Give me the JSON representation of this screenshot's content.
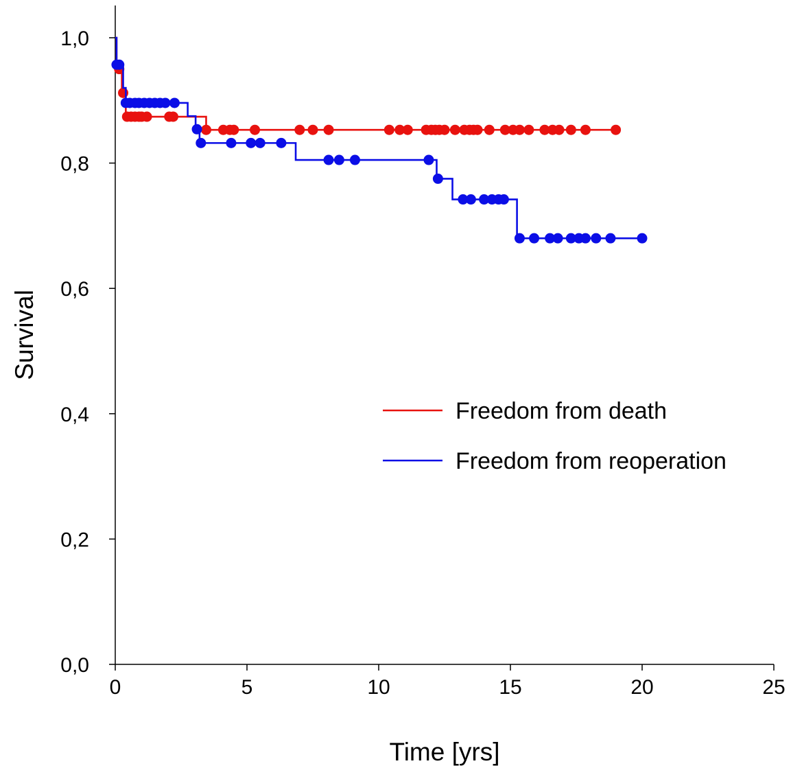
{
  "chart_data": {
    "type": "line",
    "step": true,
    "xlabel": "Time [yrs]",
    "ylabel": "Survival",
    "xlim": [
      0,
      25
    ],
    "ylim": [
      0,
      1
    ],
    "x_ticks": [
      0,
      5,
      10,
      15,
      20,
      25
    ],
    "x_tick_labels": [
      "0",
      "5",
      "10",
      "15",
      "20",
      "25"
    ],
    "y_ticks": [
      0,
      0.2,
      0.4,
      0.6,
      0.8,
      1.0
    ],
    "y_tick_labels": [
      "0,0",
      "0,2",
      "0,4",
      "0,6",
      "0,8",
      "1,0"
    ],
    "grid": false,
    "legend_position": "center-right",
    "series": [
      {
        "name": "Freedom from death",
        "color": "#e8120f",
        "steps": [
          [
            0,
            1.0
          ],
          [
            0.05,
            0.95
          ],
          [
            0.25,
            0.912
          ],
          [
            0.4,
            0.874
          ],
          [
            2.5,
            0.874
          ],
          [
            3.45,
            0.853
          ],
          [
            19.0,
            0.853
          ]
        ],
        "censored": [
          [
            0.15,
            0.95
          ],
          [
            0.3,
            0.912
          ],
          [
            0.45,
            0.874
          ],
          [
            0.6,
            0.874
          ],
          [
            0.75,
            0.874
          ],
          [
            0.9,
            0.874
          ],
          [
            1.0,
            0.874
          ],
          [
            1.2,
            0.874
          ],
          [
            2.05,
            0.874
          ],
          [
            2.2,
            0.874
          ],
          [
            3.45,
            0.853
          ],
          [
            4.1,
            0.853
          ],
          [
            4.35,
            0.853
          ],
          [
            4.5,
            0.853
          ],
          [
            5.3,
            0.853
          ],
          [
            7.0,
            0.853
          ],
          [
            7.5,
            0.853
          ],
          [
            8.1,
            0.853
          ],
          [
            10.4,
            0.853
          ],
          [
            10.8,
            0.853
          ],
          [
            11.1,
            0.853
          ],
          [
            11.8,
            0.853
          ],
          [
            12.0,
            0.853
          ],
          [
            12.15,
            0.853
          ],
          [
            12.3,
            0.853
          ],
          [
            12.5,
            0.853
          ],
          [
            12.9,
            0.853
          ],
          [
            13.25,
            0.853
          ],
          [
            13.45,
            0.853
          ],
          [
            13.6,
            0.853
          ],
          [
            13.75,
            0.853
          ],
          [
            14.2,
            0.853
          ],
          [
            14.8,
            0.853
          ],
          [
            15.1,
            0.853
          ],
          [
            15.35,
            0.853
          ],
          [
            15.7,
            0.853
          ],
          [
            16.3,
            0.853
          ],
          [
            16.6,
            0.853
          ],
          [
            16.85,
            0.853
          ],
          [
            17.3,
            0.853
          ],
          [
            17.85,
            0.853
          ],
          [
            19.0,
            0.853
          ]
        ]
      },
      {
        "name": "Freedom from reoperation",
        "color": "#0b0ee6",
        "steps": [
          [
            0,
            1.0
          ],
          [
            0.05,
            0.957
          ],
          [
            0.3,
            0.92
          ],
          [
            0.4,
            0.896
          ],
          [
            2.75,
            0.875
          ],
          [
            3.05,
            0.854
          ],
          [
            3.2,
            0.832
          ],
          [
            6.85,
            0.805
          ],
          [
            12.2,
            0.775
          ],
          [
            12.8,
            0.742
          ],
          [
            15.25,
            0.68
          ],
          [
            20.0,
            0.68
          ]
        ],
        "censored": [
          [
            0.05,
            0.957
          ],
          [
            0.15,
            0.957
          ],
          [
            0.4,
            0.896
          ],
          [
            0.55,
            0.896
          ],
          [
            0.75,
            0.896
          ],
          [
            0.9,
            0.896
          ],
          [
            1.1,
            0.896
          ],
          [
            1.3,
            0.896
          ],
          [
            1.5,
            0.896
          ],
          [
            1.7,
            0.896
          ],
          [
            1.9,
            0.896
          ],
          [
            2.25,
            0.896
          ],
          [
            3.1,
            0.854
          ],
          [
            3.25,
            0.832
          ],
          [
            4.4,
            0.832
          ],
          [
            5.15,
            0.832
          ],
          [
            5.5,
            0.832
          ],
          [
            6.3,
            0.832
          ],
          [
            8.1,
            0.805
          ],
          [
            8.5,
            0.805
          ],
          [
            9.1,
            0.805
          ],
          [
            11.9,
            0.805
          ],
          [
            12.25,
            0.775
          ],
          [
            13.2,
            0.742
          ],
          [
            13.5,
            0.742
          ],
          [
            14.0,
            0.742
          ],
          [
            14.3,
            0.742
          ],
          [
            14.55,
            0.742
          ],
          [
            14.75,
            0.742
          ],
          [
            15.35,
            0.68
          ],
          [
            15.9,
            0.68
          ],
          [
            16.5,
            0.68
          ],
          [
            16.8,
            0.68
          ],
          [
            17.3,
            0.68
          ],
          [
            17.6,
            0.68
          ],
          [
            17.85,
            0.68
          ],
          [
            18.25,
            0.68
          ],
          [
            18.8,
            0.68
          ],
          [
            20.0,
            0.68
          ]
        ]
      }
    ]
  }
}
